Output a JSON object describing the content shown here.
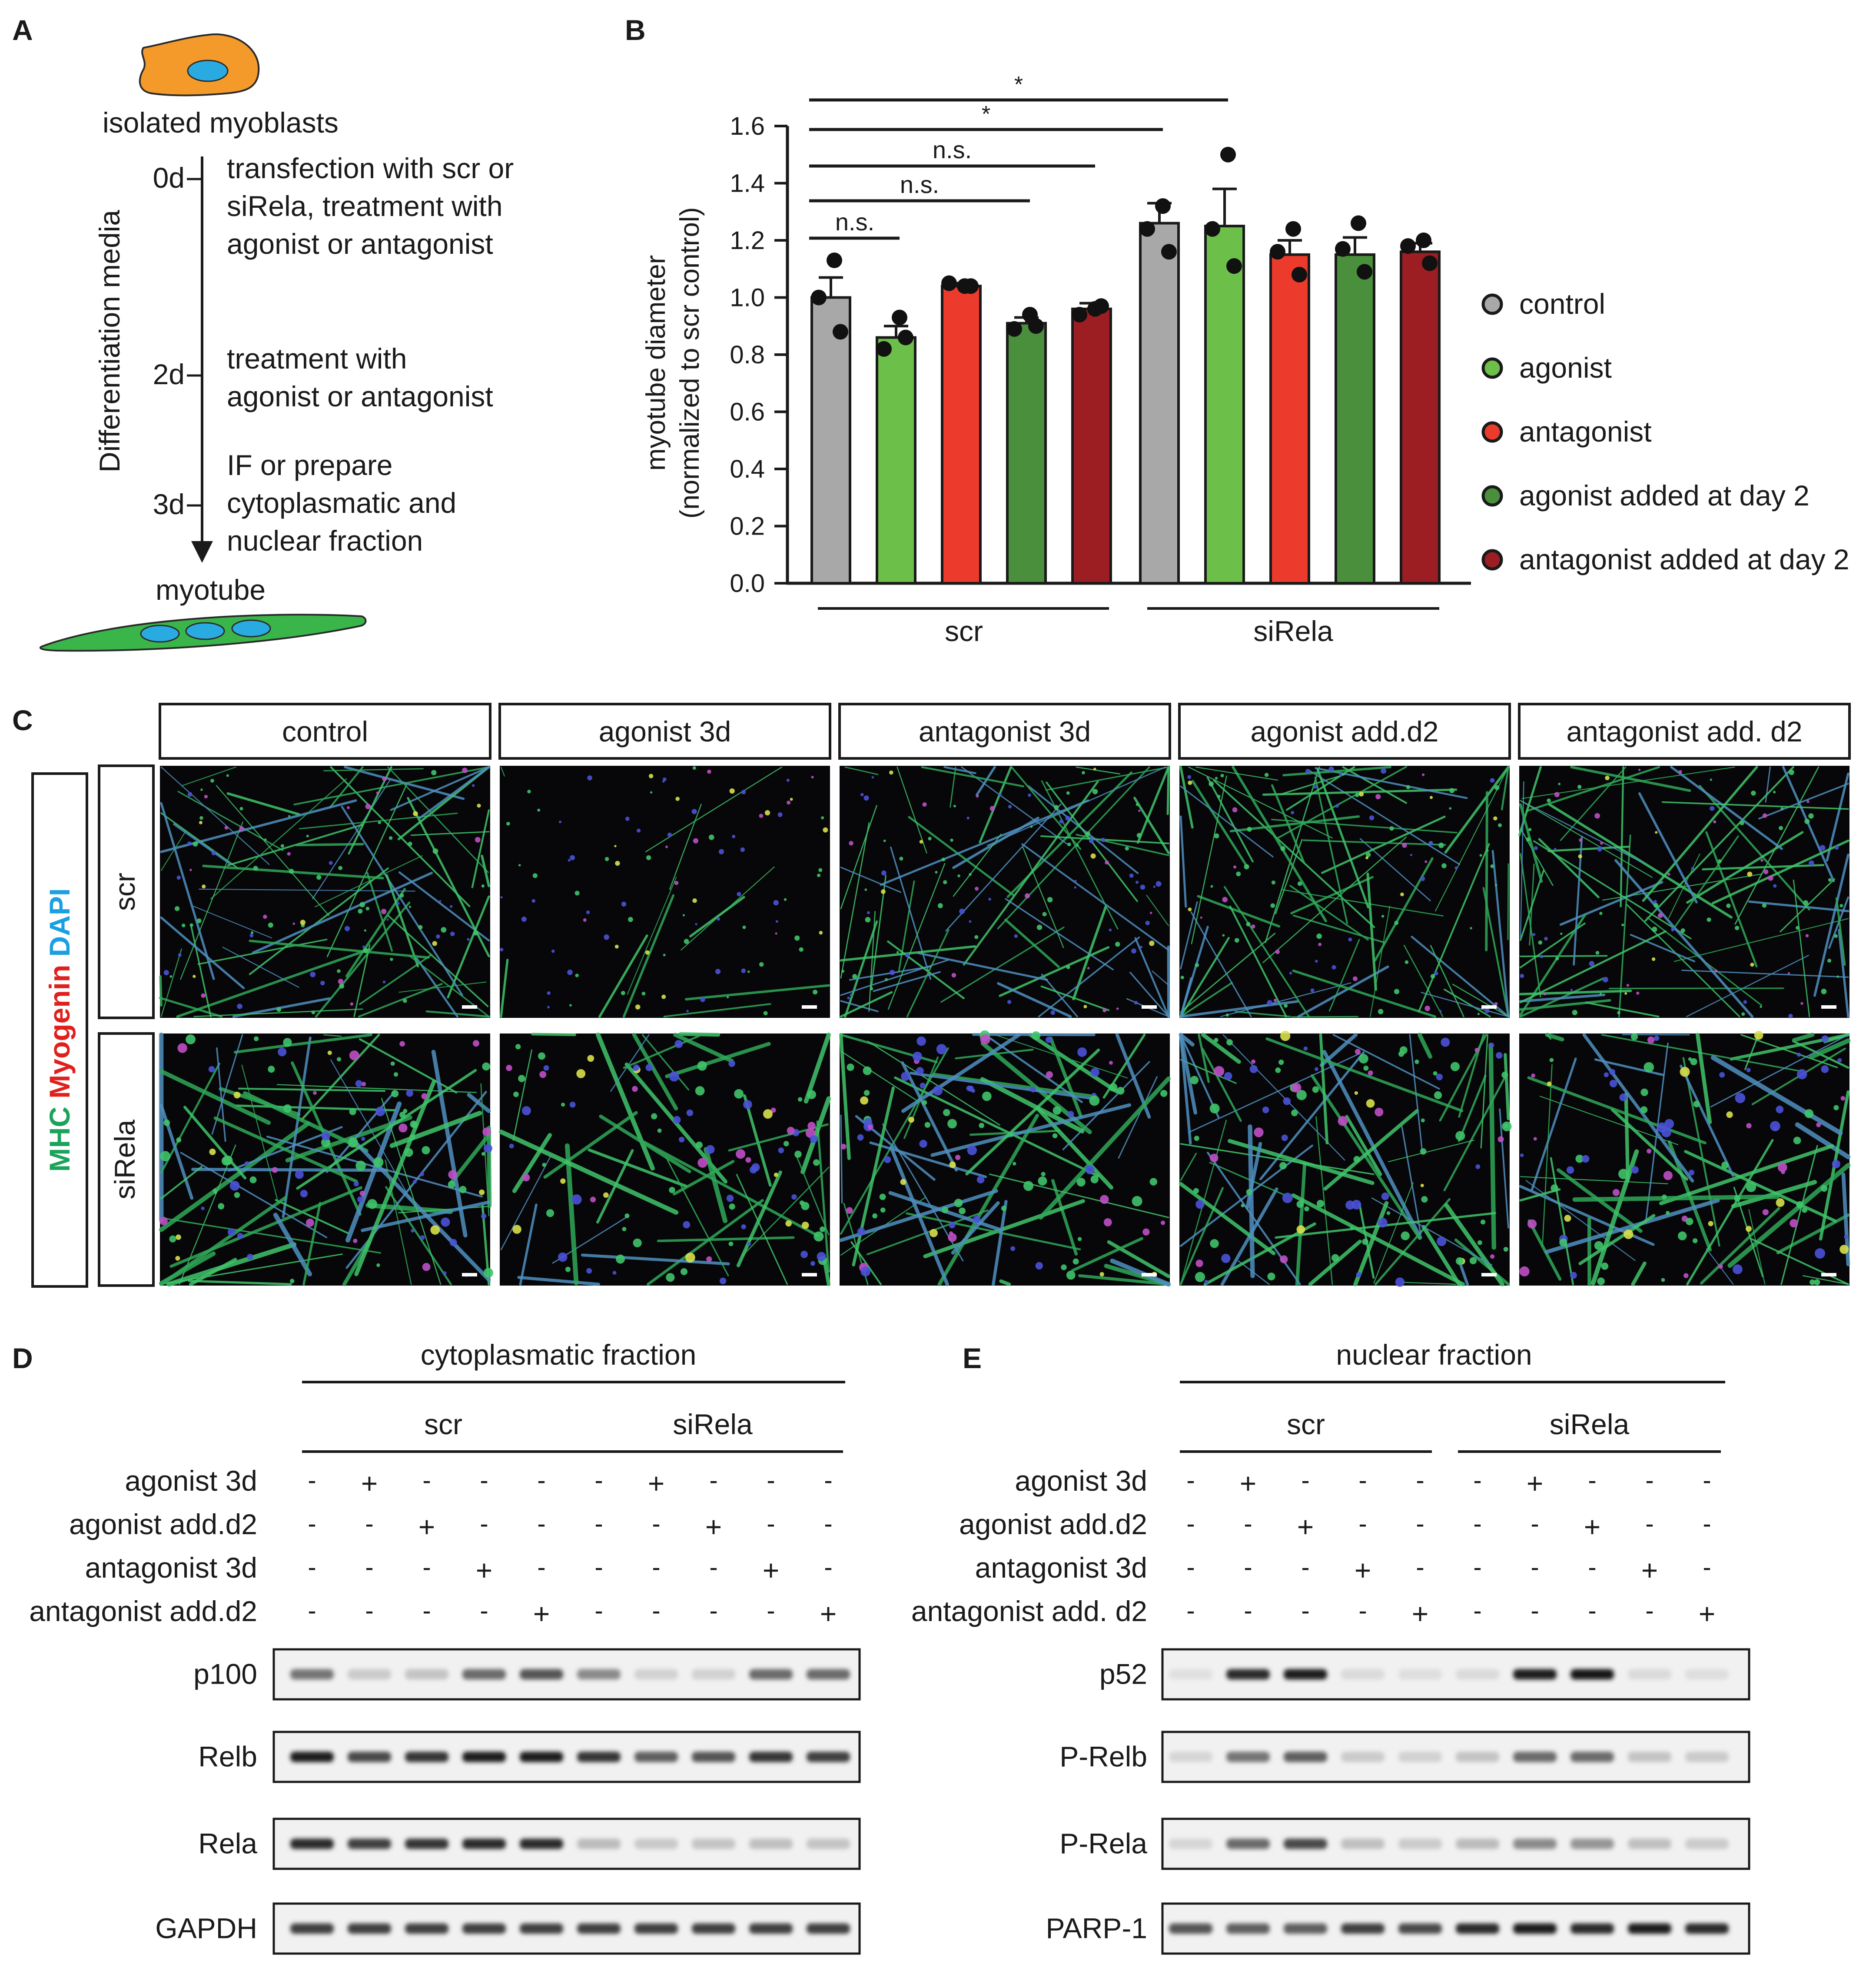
{
  "panels": {
    "a": {
      "label": "A",
      "top_label": "isolated myoblasts",
      "axis_label": "Differentiation media",
      "timepoints": [
        {
          "day": "0d",
          "lines": [
            "transfection with scr or",
            "siRela, treatment with",
            "agonist or antagonist"
          ]
        },
        {
          "day": "2d",
          "lines": [
            "treatment with",
            "agonist or antagonist"
          ]
        },
        {
          "day": "3d",
          "lines": [
            "IF or prepare",
            "cytoplasmatic and",
            "nuclear fraction"
          ]
        }
      ],
      "bottom_label": "myotube",
      "colors": {
        "myoblast": "#f39a2b",
        "nucleus": "#29abe2",
        "myotube": "#3ab54a"
      }
    },
    "b": {
      "label": "B"
    },
    "c": {
      "label": "C",
      "columns": [
        "control",
        "agonist 3d",
        "antagonist 3d",
        "agonist add.d2",
        "antagonist add. d2"
      ],
      "rows": [
        "scr",
        "siRela"
      ],
      "stain_parts": [
        {
          "text": "MHC",
          "color": "#1aa35a"
        },
        {
          "text": "Myogenin",
          "color": "#e0201c"
        },
        {
          "text": "DAPI",
          "color": "#1a9fe0"
        }
      ]
    },
    "d": {
      "label": "D",
      "fraction": "cytoplasmatic fraction",
      "groups": [
        "scr",
        "siRela"
      ],
      "treatments": [
        {
          "label": "agonist 3d",
          "marks": [
            "-",
            "+",
            "-",
            "-",
            "-",
            "-",
            "+",
            "-",
            "-",
            "-"
          ]
        },
        {
          "label": "agonist add.d2",
          "marks": [
            "-",
            "-",
            "+",
            "-",
            "-",
            "-",
            "-",
            "+",
            "-",
            "-"
          ]
        },
        {
          "label": "antagonist 3d",
          "marks": [
            "-",
            "-",
            "-",
            "+",
            "-",
            "-",
            "-",
            "-",
            "+",
            "-"
          ]
        },
        {
          "label": "antagonist add.d2",
          "marks": [
            "-",
            "-",
            "-",
            "-",
            "+",
            "-",
            "-",
            "-",
            "-",
            "+"
          ]
        }
      ],
      "blots": [
        {
          "label": "p100",
          "intensity": [
            0.55,
            0.15,
            0.18,
            0.6,
            0.7,
            0.45,
            0.12,
            0.12,
            0.6,
            0.6
          ]
        },
        {
          "label": "Relb",
          "intensity": [
            0.95,
            0.75,
            0.85,
            0.95,
            0.95,
            0.85,
            0.65,
            0.7,
            0.85,
            0.8
          ]
        },
        {
          "label": "Rela",
          "intensity": [
            0.9,
            0.8,
            0.85,
            0.9,
            0.9,
            0.22,
            0.16,
            0.18,
            0.2,
            0.18
          ]
        },
        {
          "label": "GAPDH",
          "intensity": [
            0.8,
            0.8,
            0.8,
            0.8,
            0.8,
            0.8,
            0.8,
            0.8,
            0.8,
            0.8
          ]
        }
      ]
    },
    "e": {
      "label": "E",
      "fraction": "nuclear fraction",
      "groups": [
        "scr",
        "siRela"
      ],
      "treatments": [
        {
          "label": "agonist 3d",
          "marks": [
            "-",
            "+",
            "-",
            "-",
            "-",
            "-",
            "+",
            "-",
            "-",
            "-"
          ]
        },
        {
          "label": "agonist add.d2",
          "marks": [
            "-",
            "-",
            "+",
            "-",
            "-",
            "-",
            "-",
            "+",
            "-",
            "-"
          ]
        },
        {
          "label": "antagonist 3d",
          "marks": [
            "-",
            "-",
            "-",
            "+",
            "-",
            "-",
            "-",
            "-",
            "+",
            "-"
          ]
        },
        {
          "label": "antagonist add. d2",
          "marks": [
            "-",
            "-",
            "-",
            "-",
            "+",
            "-",
            "-",
            "-",
            "-",
            "+"
          ]
        }
      ],
      "blots": [
        {
          "label": "p52",
          "intensity": [
            0.05,
            0.9,
            0.95,
            0.08,
            0.06,
            0.08,
            0.95,
            1.0,
            0.08,
            0.06
          ]
        },
        {
          "label": "P-Relb",
          "intensity": [
            0.1,
            0.55,
            0.65,
            0.15,
            0.12,
            0.18,
            0.6,
            0.6,
            0.18,
            0.15
          ]
        },
        {
          "label": "P-Rela",
          "intensity": [
            0.1,
            0.6,
            0.75,
            0.2,
            0.15,
            0.22,
            0.45,
            0.4,
            0.2,
            0.15
          ]
        },
        {
          "label": "PARP-1",
          "intensity": [
            0.7,
            0.65,
            0.65,
            0.8,
            0.75,
            0.9,
            0.95,
            0.9,
            0.95,
            0.9
          ]
        }
      ]
    }
  },
  "chart_data": {
    "type": "bar",
    "ylabel": "myotube diameter",
    "ylabel2": "(normalized to scr control)",
    "ylim": [
      0,
      1.6
    ],
    "yticks": [
      "0.0",
      "0.2",
      "0.4",
      "0.6",
      "0.8",
      "1.0",
      "1.2",
      "1.4",
      "1.6"
    ],
    "groups": [
      "scr",
      "siRela"
    ],
    "series": [
      {
        "name": "control",
        "color": "#a8a8a8"
      },
      {
        "name": "agonist",
        "color": "#6cc04a"
      },
      {
        "name": "antagonist",
        "color": "#ec3a2c"
      },
      {
        "name": "agonist added at day 2",
        "color": "#4a8f3c"
      },
      {
        "name": "antagonist added at day 2",
        "color": "#9c1e22"
      }
    ],
    "bars": [
      {
        "group": "scr",
        "series": "control",
        "value": 1.0,
        "sem": 0.07,
        "points": [
          1.13,
          1.0,
          0.88
        ]
      },
      {
        "group": "scr",
        "series": "agonist",
        "value": 0.86,
        "sem": 0.04,
        "points": [
          0.93,
          0.82,
          0.86
        ]
      },
      {
        "group": "scr",
        "series": "antagonist",
        "value": 1.04,
        "sem": 0.01,
        "points": [
          1.04,
          1.05,
          1.04
        ]
      },
      {
        "group": "scr",
        "series": "agonist added at day 2",
        "value": 0.91,
        "sem": 0.02,
        "points": [
          0.94,
          0.89,
          0.9
        ]
      },
      {
        "group": "scr",
        "series": "antagonist added at day 2",
        "value": 0.96,
        "sem": 0.02,
        "points": [
          0.96,
          0.94,
          0.97
        ]
      },
      {
        "group": "siRela",
        "series": "control",
        "value": 1.26,
        "sem": 0.07,
        "points": [
          1.32,
          1.24,
          1.16
        ]
      },
      {
        "group": "siRela",
        "series": "agonist",
        "value": 1.25,
        "sem": 0.13,
        "points": [
          1.5,
          1.24,
          1.11
        ]
      },
      {
        "group": "siRela",
        "series": "antagonist",
        "value": 1.15,
        "sem": 0.05,
        "points": [
          1.24,
          1.16,
          1.08
        ]
      },
      {
        "group": "siRela",
        "series": "agonist added at day 2",
        "value": 1.15,
        "sem": 0.06,
        "points": [
          1.26,
          1.17,
          1.09
        ]
      },
      {
        "group": "siRela",
        "series": "antagonist added at day 2",
        "value": 1.16,
        "sem": 0.03,
        "points": [
          1.2,
          1.18,
          1.12
        ]
      }
    ],
    "significance": [
      {
        "from": 0,
        "to": 1,
        "label": "n.s."
      },
      {
        "from": 0,
        "to": 3,
        "label": "n.s."
      },
      {
        "from": 0,
        "to": 4,
        "label": "n.s."
      },
      {
        "from": 0,
        "to": 5,
        "label": "*"
      },
      {
        "from": 0,
        "to": 6,
        "label": "*"
      }
    ]
  }
}
